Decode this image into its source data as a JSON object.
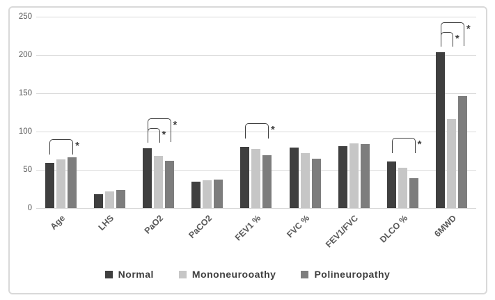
{
  "chart_data": {
    "type": "bar",
    "title": "",
    "xlabel": "",
    "ylabel": "",
    "ylim": [
      0,
      250
    ],
    "yticks": [
      0,
      50,
      100,
      150,
      200,
      250
    ],
    "grid": true,
    "legend_position": "bottom",
    "categories": [
      "Age",
      "LHS",
      "PaO2",
      "PaCO2",
      "FEV1 %",
      "FVC %",
      "FEV1/FVC",
      "DLCO %",
      "6MWD"
    ],
    "series": [
      {
        "name": "Normal",
        "color": "#3f3f3f",
        "values": [
          59,
          18,
          78,
          35,
          80,
          79,
          81,
          61,
          204
        ]
      },
      {
        "name": "Mononeurooathy",
        "color": "#c6c6c6",
        "values": [
          64,
          22,
          68,
          36,
          77,
          72,
          85,
          53,
          116
        ]
      },
      {
        "name": "Polineuropathy",
        "color": "#7d7d7d",
        "values": [
          66,
          24,
          62,
          37,
          69,
          65,
          84,
          39,
          146
        ]
      }
    ],
    "significance_brackets": [
      {
        "category": "Age",
        "from_series": 0,
        "to_series": 2,
        "label": "*"
      },
      {
        "category": "PaO2",
        "from_series": 0,
        "to_series": 1,
        "label": "*"
      },
      {
        "category": "PaO2",
        "from_series": 0,
        "to_series": 2,
        "label": "*"
      },
      {
        "category": "FEV1 %",
        "from_series": 0,
        "to_series": 2,
        "label": "*"
      },
      {
        "category": "DLCO %",
        "from_series": 0,
        "to_series": 2,
        "label": "*"
      },
      {
        "category": "6MWD",
        "from_series": 0,
        "to_series": 1,
        "label": "*"
      },
      {
        "category": "6MWD",
        "from_series": 0,
        "to_series": 2,
        "label": "*"
      }
    ]
  }
}
